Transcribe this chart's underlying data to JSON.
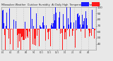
{
  "title": "Milwaukee Weather  Outdoor Humidity  At Daily High  Temperature  (Past Year)",
  "background_color": "#e8e8e8",
  "plot_bg_color": "#e8e8e8",
  "grid_color": "#aaaaaa",
  "bar_color_above": "#1a1aff",
  "bar_color_below": "#ff1a1a",
  "legend_blue": "#1a1aff",
  "legend_red": "#ff1a1a",
  "ylim": [
    30,
    100
  ],
  "yticks": [
    40,
    50,
    60,
    70,
    80,
    90,
    100
  ],
  "num_bars": 365,
  "baseline": 65,
  "seed": 42,
  "noise_std": 20,
  "seasonal_amp": 8
}
